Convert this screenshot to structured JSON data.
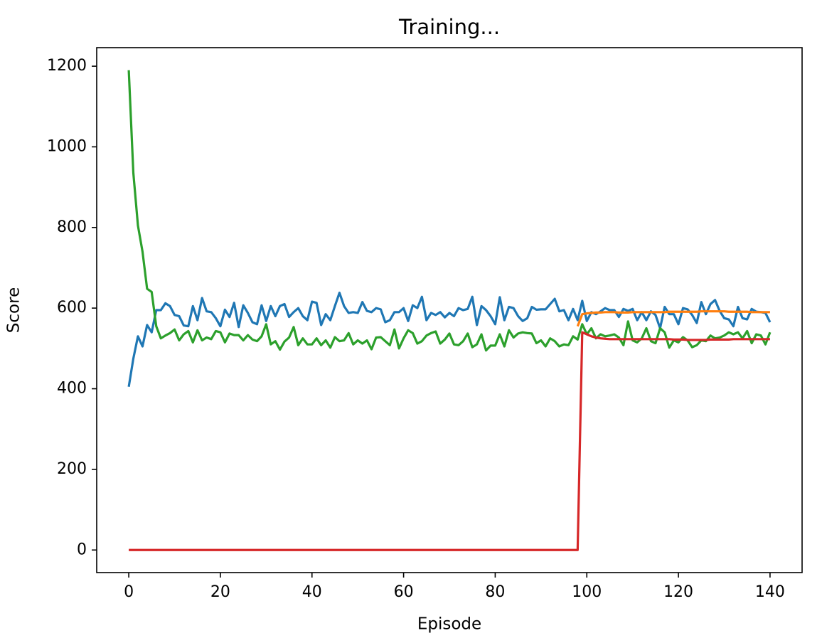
{
  "chart_data": {
    "type": "line",
    "title": "Training...",
    "x_label": "Episode",
    "y_label": "Score",
    "x": [
      0,
      1,
      2,
      3,
      4,
      5,
      6,
      7,
      8,
      9,
      10,
      11,
      12,
      13,
      14,
      15,
      16,
      17,
      18,
      19,
      20,
      21,
      22,
      23,
      24,
      25,
      26,
      27,
      28,
      29,
      30,
      31,
      32,
      33,
      34,
      35,
      36,
      37,
      38,
      39,
      40,
      41,
      42,
      43,
      44,
      45,
      46,
      47,
      48,
      49,
      50,
      51,
      52,
      53,
      54,
      55,
      56,
      57,
      58,
      59,
      60,
      61,
      62,
      63,
      64,
      65,
      66,
      67,
      68,
      69,
      70,
      71,
      72,
      73,
      74,
      75,
      76,
      77,
      78,
      79,
      80,
      81,
      82,
      83,
      84,
      85,
      86,
      87,
      88,
      89,
      90,
      91,
      92,
      93,
      94,
      95,
      96,
      97,
      98,
      99,
      100,
      101,
      102,
      103,
      104,
      105,
      106,
      107,
      108,
      109,
      110,
      111,
      112,
      113,
      114,
      115,
      116,
      117,
      118,
      119,
      120,
      121,
      122,
      123,
      124,
      125,
      126,
      127,
      128,
      129,
      130,
      131,
      132,
      133,
      134,
      135,
      136,
      137,
      138,
      139,
      140
    ],
    "series": [
      {
        "color": "#1f77b4",
        "values": [
          405,
          475,
          530,
          505,
          558,
          540,
          595,
          595,
          612,
          605,
          583,
          580,
          557,
          555,
          605,
          570,
          625,
          592,
          590,
          575,
          555,
          596,
          578,
          613,
          553,
          607,
          588,
          565,
          560,
          607,
          568,
          605,
          580,
          605,
          610,
          578,
          590,
          600,
          580,
          570,
          616,
          613,
          558,
          585,
          570,
          605,
          638,
          605,
          588,
          590,
          588,
          615,
          593,
          590,
          600,
          597,
          565,
          570,
          590,
          590,
          600,
          568,
          607,
          600,
          628,
          570,
          588,
          583,
          590,
          577,
          588,
          580,
          600,
          595,
          598,
          628,
          558,
          605,
          595,
          580,
          560,
          627,
          570,
          603,
          600,
          580,
          568,
          575,
          603,
          596,
          597,
          597,
          610,
          623,
          592,
          595,
          570,
          598,
          570,
          618,
          568,
          590,
          585,
          592,
          600,
          595,
          595,
          578,
          598,
          593,
          598,
          570,
          590,
          570,
          592,
          583,
          550,
          603,
          585,
          585,
          560,
          600,
          597,
          583,
          563,
          615,
          585,
          610,
          620,
          593,
          575,
          572,
          555,
          603,
          575,
          572,
          598,
          591,
          590,
          588,
          565
        ]
      },
      {
        "color": "#ff7f0e",
        "values": [
          null,
          null,
          null,
          null,
          null,
          null,
          null,
          null,
          null,
          null,
          null,
          null,
          null,
          null,
          null,
          null,
          null,
          null,
          null,
          null,
          null,
          null,
          null,
          null,
          null,
          null,
          null,
          null,
          null,
          null,
          null,
          null,
          null,
          null,
          null,
          null,
          null,
          null,
          null,
          null,
          null,
          null,
          null,
          null,
          null,
          null,
          null,
          null,
          null,
          null,
          null,
          null,
          null,
          null,
          null,
          null,
          null,
          null,
          null,
          null,
          null,
          null,
          null,
          null,
          null,
          null,
          null,
          null,
          null,
          null,
          null,
          null,
          null,
          null,
          null,
          null,
          null,
          null,
          null,
          null,
          null,
          null,
          null,
          null,
          null,
          null,
          null,
          null,
          null,
          null,
          null,
          null,
          null,
          null,
          null,
          null,
          null,
          null,
          555,
          585,
          587,
          588,
          589,
          589,
          590,
          590,
          590,
          589,
          589,
          589,
          590,
          590,
          590,
          590,
          590,
          590,
          590,
          590,
          591,
          591,
          591,
          591,
          591,
          591,
          591,
          592,
          592,
          592,
          592,
          592,
          592,
          591,
          591,
          591,
          591,
          591,
          590,
          590,
          590,
          590,
          590
        ]
      },
      {
        "color": "#2ca02c",
        "values": [
          1190,
          935,
          805,
          740,
          648,
          640,
          555,
          525,
          532,
          538,
          547,
          520,
          535,
          543,
          515,
          545,
          520,
          527,
          523,
          543,
          540,
          515,
          537,
          533,
          533,
          520,
          533,
          522,
          518,
          530,
          560,
          510,
          518,
          497,
          517,
          527,
          553,
          508,
          525,
          510,
          510,
          525,
          508,
          520,
          502,
          528,
          518,
          520,
          538,
          510,
          520,
          512,
          520,
          498,
          527,
          528,
          518,
          508,
          547,
          500,
          525,
          545,
          538,
          512,
          518,
          532,
          538,
          542,
          512,
          522,
          537,
          510,
          508,
          518,
          537,
          503,
          510,
          535,
          495,
          507,
          507,
          535,
          505,
          545,
          527,
          537,
          540,
          538,
          537,
          513,
          520,
          505,
          525,
          518,
          505,
          510,
          508,
          530,
          522,
          560,
          535,
          550,
          525,
          535,
          530,
          532,
          535,
          527,
          508,
          567,
          520,
          515,
          525,
          550,
          518,
          513,
          550,
          540,
          502,
          520,
          515,
          528,
          520,
          503,
          508,
          520,
          518,
          532,
          525,
          527,
          532,
          540,
          535,
          540,
          525,
          543,
          513,
          535,
          532,
          510,
          540
        ]
      },
      {
        "color": "#d62728",
        "values": [
          0,
          0,
          0,
          0,
          0,
          0,
          0,
          0,
          0,
          0,
          0,
          0,
          0,
          0,
          0,
          0,
          0,
          0,
          0,
          0,
          0,
          0,
          0,
          0,
          0,
          0,
          0,
          0,
          0,
          0,
          0,
          0,
          0,
          0,
          0,
          0,
          0,
          0,
          0,
          0,
          0,
          0,
          0,
          0,
          0,
          0,
          0,
          0,
          0,
          0,
          0,
          0,
          0,
          0,
          0,
          0,
          0,
          0,
          0,
          0,
          0,
          0,
          0,
          0,
          0,
          0,
          0,
          0,
          0,
          0,
          0,
          0,
          0,
          0,
          0,
          0,
          0,
          0,
          0,
          0,
          0,
          0,
          0,
          0,
          0,
          0,
          0,
          0,
          0,
          0,
          0,
          0,
          0,
          0,
          0,
          0,
          0,
          0,
          0,
          540,
          535,
          530,
          527,
          525,
          524,
          523,
          523,
          523,
          523,
          523,
          523,
          523,
          523,
          523,
          523,
          523,
          523,
          523,
          523,
          522,
          522,
          522,
          521,
          521,
          521,
          521,
          521,
          522,
          522,
          522,
          522,
          522,
          523,
          523,
          523,
          523,
          523,
          523,
          523,
          523,
          523
        ]
      }
    ],
    "xlim": [
      -7,
      147
    ],
    "ylim": [
      -56,
      1246
    ],
    "xticks": [
      0,
      20,
      40,
      60,
      80,
      100,
      120,
      140
    ],
    "yticks": [
      0,
      200,
      400,
      600,
      800,
      1000,
      1200
    ],
    "grid": false
  }
}
